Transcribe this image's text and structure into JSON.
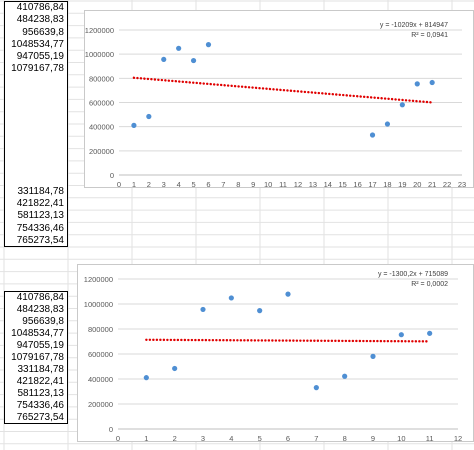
{
  "column_top": [
    "410786,84",
    "484238,83",
    "956639,8",
    "1048534,77",
    "947055,19",
    "1079167,78",
    "",
    "",
    "",
    "",
    "",
    "",
    "",
    "",
    "",
    "331184,78",
    "421822,41",
    "581123,13",
    "754336,46",
    "765273,54"
  ],
  "column_bottom": [
    "410786,84",
    "484238,83",
    "956639,8",
    "1048534,77",
    "947055,19",
    "1079167,78",
    "331184,78",
    "421822,41",
    "581123,13",
    "754336,46",
    "765273,54"
  ],
  "colors": {
    "points": "#4f8fd3",
    "trend": "#e00000",
    "gridline": "#d9d9d9",
    "axis": "#bfbfbf",
    "cellgrid": "#e2e2e2"
  },
  "chart_data": [
    {
      "type": "scatter",
      "x": [
        1,
        2,
        3,
        4,
        5,
        6,
        17,
        18,
        19,
        20,
        21
      ],
      "y": [
        410786.84,
        484238.83,
        956639.8,
        1048534.77,
        947055.19,
        1079167.78,
        331184.78,
        421822.41,
        581123.13,
        754336.46,
        765273.54
      ],
      "trendline": {
        "slope": -10209,
        "intercept": 814947
      },
      "equation": "y = -10209x + 814947",
      "r2": "R² = 0,0941",
      "xlim": [
        0,
        23
      ],
      "xticks": [
        0,
        1,
        2,
        3,
        4,
        5,
        6,
        7,
        8,
        9,
        10,
        11,
        12,
        13,
        14,
        15,
        16,
        17,
        18,
        19,
        20,
        21,
        22,
        23
      ],
      "ylim": [
        0,
        1200000
      ],
      "yticks": [
        0,
        200000,
        400000,
        600000,
        800000,
        1000000,
        1200000
      ],
      "grid": true
    },
    {
      "type": "scatter",
      "x": [
        1,
        2,
        3,
        4,
        5,
        6,
        7,
        8,
        9,
        10,
        11
      ],
      "y": [
        410786.84,
        484238.83,
        956639.8,
        1048534.77,
        947055.19,
        1079167.78,
        331184.78,
        421822.41,
        581123.13,
        754336.46,
        765273.54
      ],
      "trendline": {
        "slope": -1300.2,
        "intercept": 715089
      },
      "equation": "y = -1300,2x + 715089",
      "r2": "R² = 0,0002",
      "xlim": [
        0,
        12
      ],
      "xticks": [
        0,
        1,
        2,
        3,
        4,
        5,
        6,
        7,
        8,
        9,
        10,
        11,
        12
      ],
      "ylim": [
        0,
        1200000
      ],
      "yticks": [
        0,
        200000,
        400000,
        600000,
        800000,
        1000000,
        1200000
      ],
      "grid": true
    }
  ]
}
